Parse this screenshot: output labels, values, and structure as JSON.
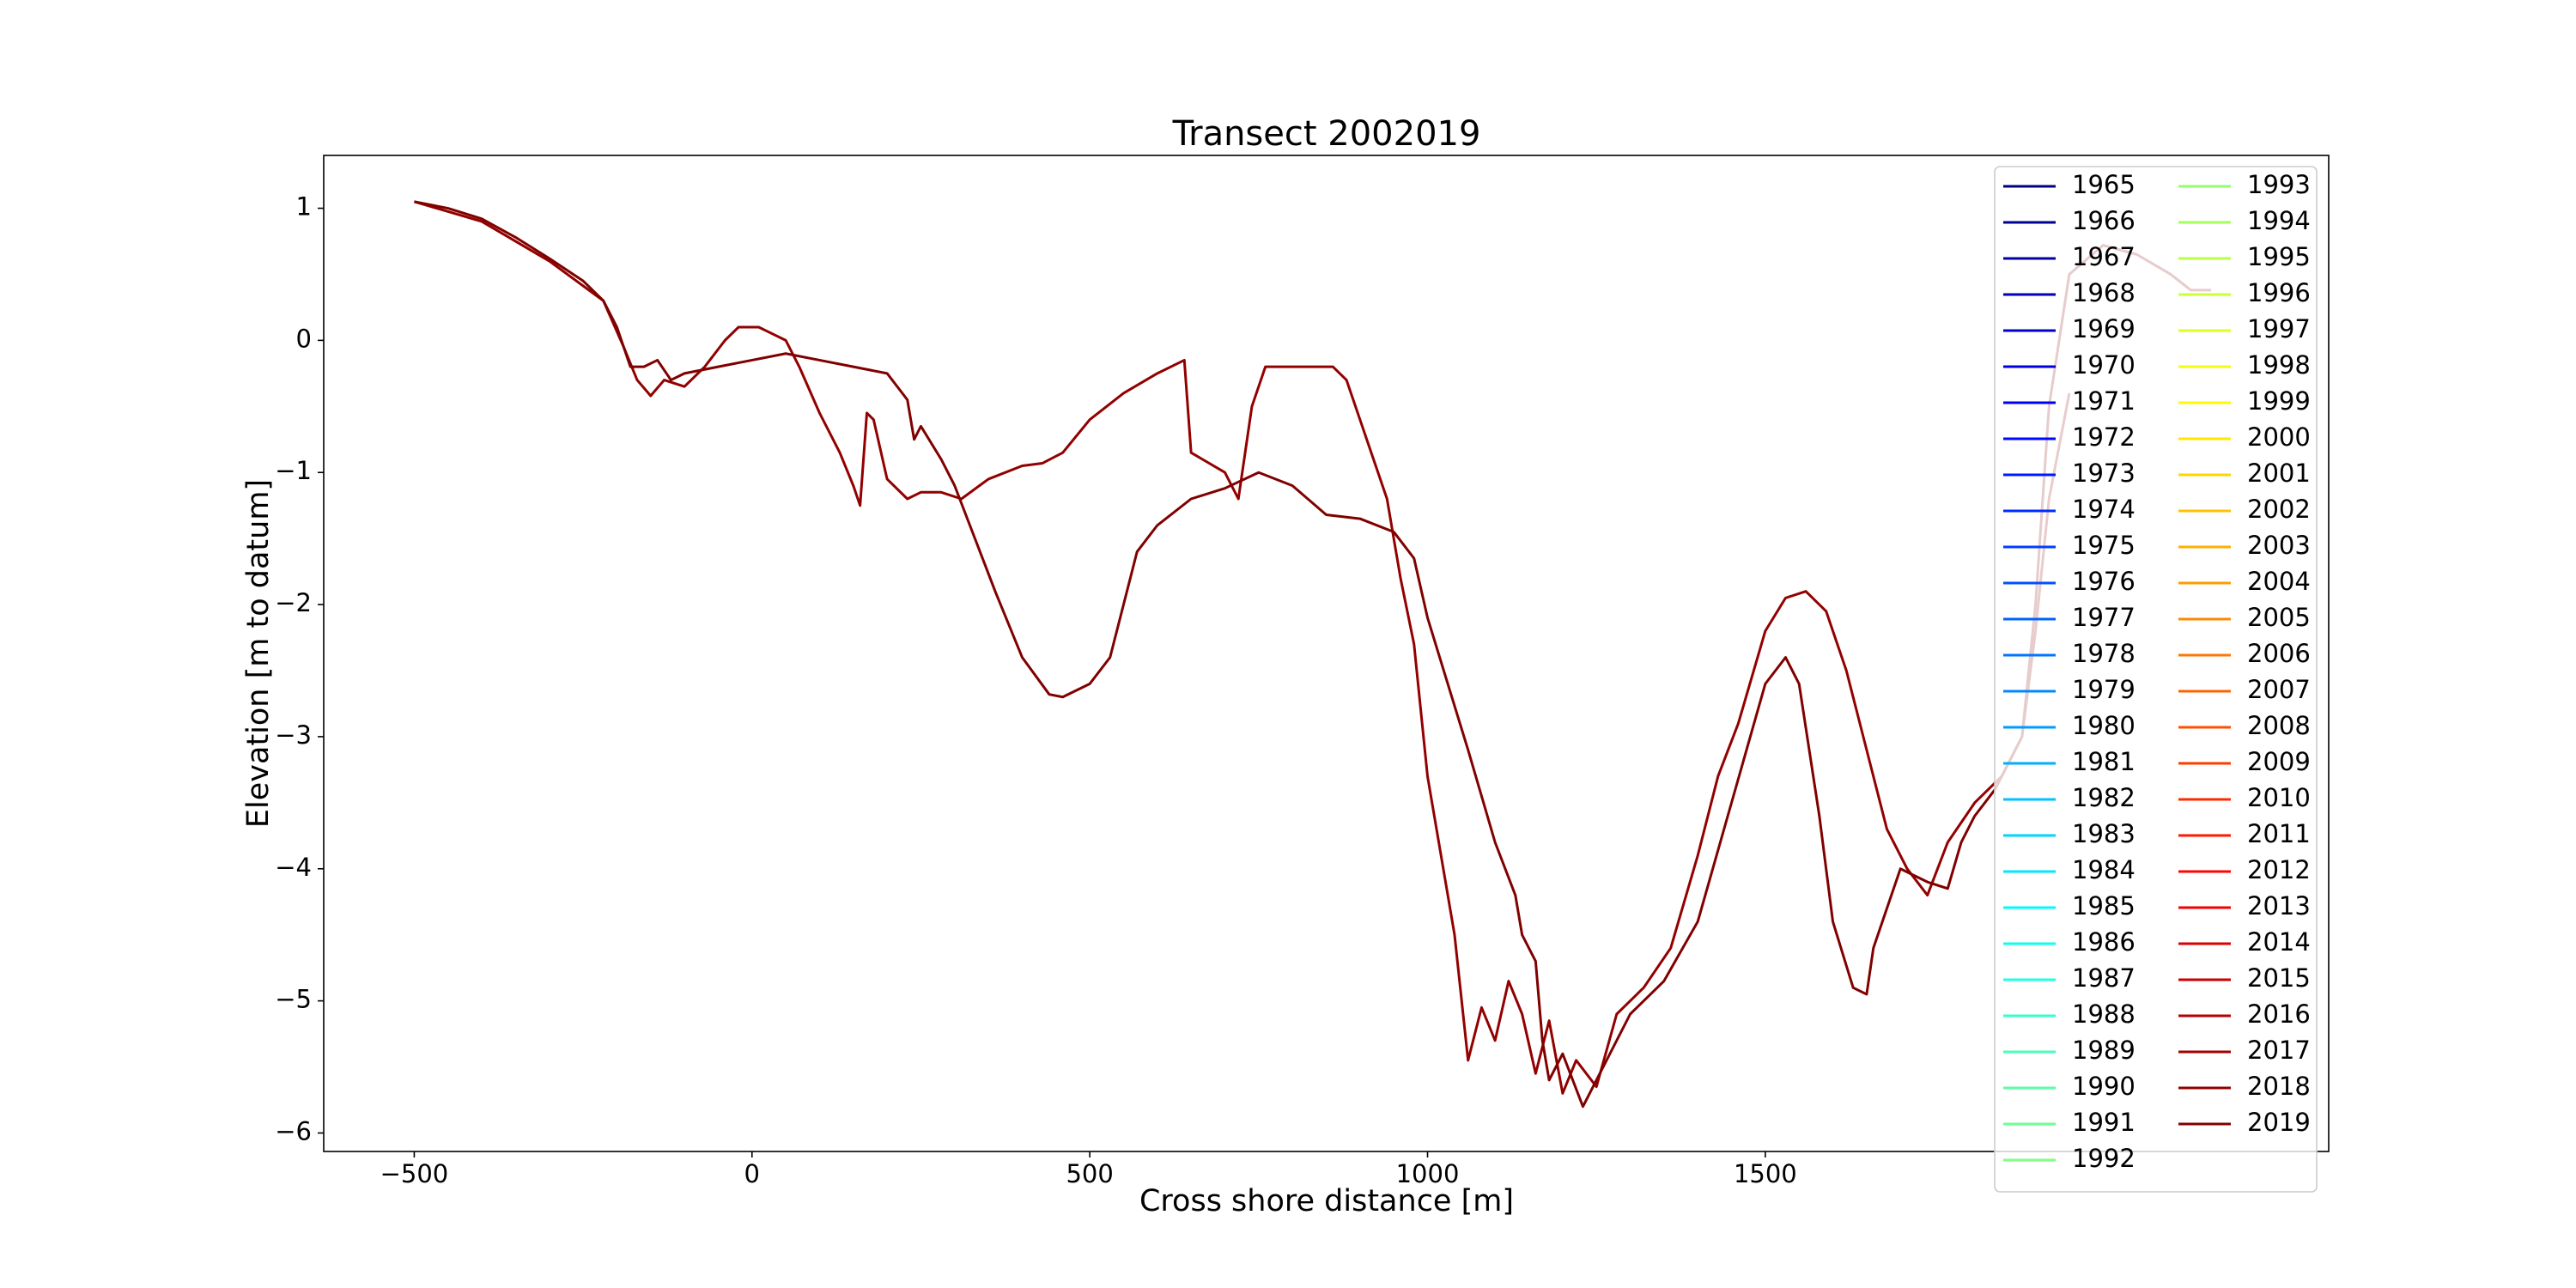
{
  "chart_data": {
    "type": "line",
    "title": "Transect 2002019",
    "x_label": "Cross shore distance [m]",
    "y_label": "Elevation [m to datum]",
    "xlim": [
      -634,
      2334
    ],
    "ylim": [
      -6.14,
      1.4
    ],
    "xticks": [
      {
        "value": -500,
        "label": "−500"
      },
      0,
      500,
      1000,
      1500
    ],
    "yticks": [
      {
        "value": -6,
        "label": "−6"
      },
      {
        "value": -5,
        "label": "−5"
      },
      {
        "value": -4,
        "label": "−4"
      },
      {
        "value": -3,
        "label": "−3"
      },
      {
        "value": -2,
        "label": "−2"
      },
      {
        "value": -1,
        "label": "−1"
      },
      0,
      1
    ],
    "grid": false,
    "legend": "upper right",
    "series": [
      {
        "name": "1965",
        "color": "#000080"
      },
      {
        "name": "1966",
        "color": "#000092"
      },
      {
        "name": "1967",
        "color": "#0000a5"
      },
      {
        "name": "1968",
        "color": "#0000b8"
      },
      {
        "name": "1969",
        "color": "#0000cb"
      },
      {
        "name": "1970",
        "color": "#0000de"
      },
      {
        "name": "1971",
        "color": "#0000f1"
      },
      {
        "name": "1972",
        "color": "#0005ff"
      },
      {
        "name": "1973",
        "color": "#0018ff"
      },
      {
        "name": "1974",
        "color": "#002bff"
      },
      {
        "name": "1975",
        "color": "#003dff"
      },
      {
        "name": "1976",
        "color": "#0050ff"
      },
      {
        "name": "1977",
        "color": "#0063ff"
      },
      {
        "name": "1978",
        "color": "#0076ff"
      },
      {
        "name": "1979",
        "color": "#0089ff"
      },
      {
        "name": "1980",
        "color": "#009cff"
      },
      {
        "name": "1981",
        "color": "#00afff"
      },
      {
        "name": "1982",
        "color": "#00c2ff"
      },
      {
        "name": "1983",
        "color": "#00d4ff"
      },
      {
        "name": "1984",
        "color": "#00e7ff"
      },
      {
        "name": "1985",
        "color": "#00faff"
      },
      {
        "name": "1986",
        "color": "#0efff1"
      },
      {
        "name": "1987",
        "color": "#21ffde"
      },
      {
        "name": "1988",
        "color": "#34ffcb"
      },
      {
        "name": "1989",
        "color": "#47ffb8"
      },
      {
        "name": "1990",
        "color": "#5affa5"
      },
      {
        "name": "1991",
        "color": "#6dff92"
      },
      {
        "name": "1992",
        "color": "#80ff80"
      },
      {
        "name": "1993",
        "color": "#92ff6d"
      },
      {
        "name": "1994",
        "color": "#a5ff5a"
      },
      {
        "name": "1995",
        "color": "#b8ff47"
      },
      {
        "name": "1996",
        "color": "#cbff34"
      },
      {
        "name": "1997",
        "color": "#deff21"
      },
      {
        "name": "1998",
        "color": "#f1ff0e"
      },
      {
        "name": "1999",
        "color": "#fffa00"
      },
      {
        "name": "2000",
        "color": "#ffe700"
      },
      {
        "name": "2001",
        "color": "#ffd400"
      },
      {
        "name": "2002",
        "color": "#ffc200"
      },
      {
        "name": "2003",
        "color": "#ffaf00"
      },
      {
        "name": "2004",
        "color": "#ff9c00"
      },
      {
        "name": "2005",
        "color": "#ff8900"
      },
      {
        "name": "2006",
        "color": "#ff7600"
      },
      {
        "name": "2007",
        "color": "#ff6300"
      },
      {
        "name": "2008",
        "color": "#ff5000"
      },
      {
        "name": "2009",
        "color": "#ff3d00"
      },
      {
        "name": "2010",
        "color": "#ff2b00"
      },
      {
        "name": "2011",
        "color": "#ff1800"
      },
      {
        "name": "2012",
        "color": "#ff0500"
      },
      {
        "name": "2013",
        "color": "#f10000"
      },
      {
        "name": "2014",
        "color": "#de0000"
      },
      {
        "name": "2015",
        "color": "#cb0000"
      },
      {
        "name": "2016",
        "color": "#b80000"
      },
      {
        "name": "2017",
        "color": "#a50000"
      },
      {
        "name": "2018",
        "color": "#920000",
        "x": [
          -500,
          -400,
          -300,
          -220,
          -190,
          -170,
          -150,
          -130,
          -100,
          -70,
          -40,
          -20,
          10,
          50,
          70,
          100,
          130,
          150,
          160,
          170,
          180,
          200,
          230,
          250,
          280,
          310,
          350,
          400,
          430,
          460,
          500,
          550,
          600,
          640,
          650,
          700,
          720,
          740,
          760,
          800,
          860,
          880,
          900,
          940,
          960,
          980,
          1000,
          1020,
          1040,
          1060,
          1080,
          1100,
          1120,
          1140,
          1160,
          1180,
          1200,
          1220,
          1250,
          1280,
          1320,
          1360,
          1400,
          1430,
          1460,
          1500,
          1530,
          1560,
          1590,
          1620,
          1650,
          1680,
          1710,
          1740,
          1770,
          1810,
          1850,
          1880,
          1900,
          1920,
          1950
        ],
        "values": [
          1.05,
          0.9,
          0.6,
          0.3,
          -0.05,
          -0.3,
          -0.42,
          -0.3,
          -0.35,
          -0.2,
          0.0,
          0.1,
          0.1,
          0.0,
          -0.2,
          -0.55,
          -0.85,
          -1.1,
          -1.25,
          -0.55,
          -0.6,
          -1.05,
          -1.2,
          -1.15,
          -1.15,
          -1.2,
          -1.05,
          -0.95,
          -0.93,
          -0.85,
          -0.6,
          -0.4,
          -0.25,
          -0.15,
          -0.85,
          -1.0,
          -1.2,
          -0.5,
          -0.2,
          -0.2,
          -0.2,
          -0.3,
          -0.6,
          -1.2,
          -1.8,
          -2.3,
          -3.3,
          -3.9,
          -4.5,
          -5.45,
          -5.05,
          -5.3,
          -4.85,
          -5.1,
          -5.55,
          -5.15,
          -5.7,
          -5.45,
          -5.65,
          -5.1,
          -4.9,
          -4.6,
          -3.9,
          -3.3,
          -2.9,
          -2.2,
          -1.95,
          -1.9,
          -2.05,
          -2.5,
          -3.1,
          -3.7,
          -4.0,
          -4.2,
          -3.8,
          -3.5,
          -3.3,
          -3.0,
          -2.2,
          -1.2,
          -0.4
        ]
      },
      {
        "name": "2019",
        "color": "#800000",
        "x": [
          -500,
          -450,
          -400,
          -350,
          -300,
          -250,
          -220,
          -200,
          -180,
          -160,
          -140,
          -120,
          -100,
          -50,
          0,
          50,
          100,
          150,
          200,
          230,
          240,
          250,
          280,
          300,
          330,
          360,
          400,
          440,
          460,
          500,
          530,
          550,
          570,
          600,
          650,
          700,
          750,
          800,
          850,
          900,
          950,
          980,
          1000,
          1030,
          1060,
          1100,
          1130,
          1140,
          1160,
          1170,
          1180,
          1200,
          1230,
          1260,
          1300,
          1350,
          1400,
          1450,
          1500,
          1530,
          1550,
          1580,
          1600,
          1630,
          1650,
          1660,
          1680,
          1700,
          1740,
          1770,
          1790,
          1810,
          1840,
          1880,
          1900,
          1920,
          1950,
          2000,
          2050,
          2100,
          2130,
          2160
        ],
        "values": [
          1.05,
          1.0,
          0.92,
          0.78,
          0.62,
          0.45,
          0.3,
          0.1,
          -0.2,
          -0.2,
          -0.15,
          -0.3,
          -0.25,
          -0.2,
          -0.15,
          -0.1,
          -0.15,
          -0.2,
          -0.25,
          -0.45,
          -0.75,
          -0.65,
          -0.9,
          -1.1,
          -1.5,
          -1.9,
          -2.4,
          -2.68,
          -2.7,
          -2.6,
          -2.4,
          -2.0,
          -1.6,
          -1.4,
          -1.2,
          -1.12,
          -1.0,
          -1.1,
          -1.32,
          -1.35,
          -1.45,
          -1.65,
          -2.1,
          -2.6,
          -3.1,
          -3.8,
          -4.2,
          -4.5,
          -4.7,
          -5.3,
          -5.6,
          -5.4,
          -5.8,
          -5.5,
          -5.1,
          -4.85,
          -4.4,
          -3.5,
          -2.6,
          -2.4,
          -2.6,
          -3.6,
          -4.4,
          -4.9,
          -4.95,
          -4.6,
          -4.3,
          -4.0,
          -4.1,
          -4.15,
          -3.8,
          -3.6,
          -3.4,
          -3.0,
          -2.0,
          -0.5,
          0.5,
          0.72,
          0.65,
          0.5,
          0.38,
          0.38
        ]
      }
    ]
  }
}
